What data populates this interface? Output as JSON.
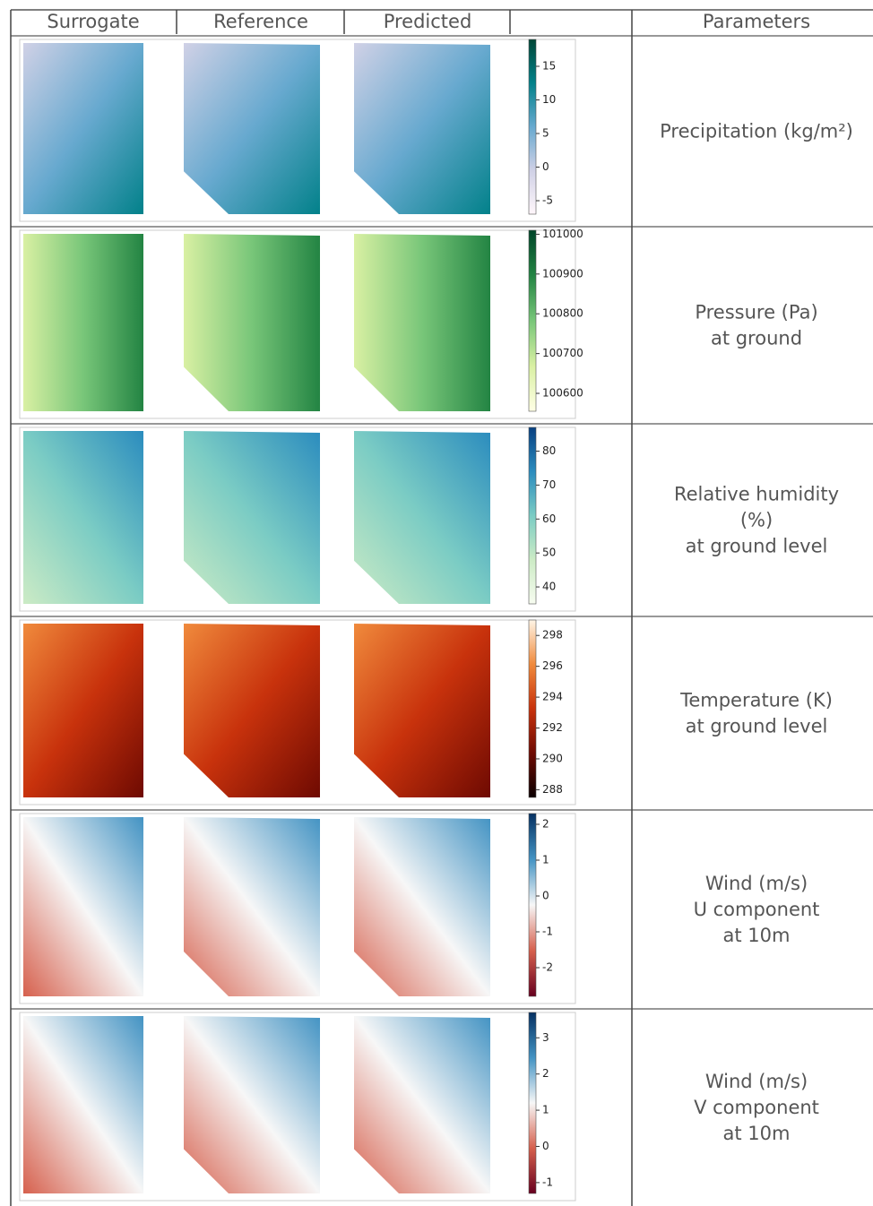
{
  "table": {
    "header": [
      "Surrogate",
      "Reference",
      "Predicted",
      "Parameters"
    ],
    "rows": [
      {
        "parameter": [
          "Precipitation (kg/m²)"
        ],
        "colorbar": {
          "lim": [
            -7,
            19
          ],
          "ticks": [
            -5,
            0,
            5,
            10,
            15
          ],
          "cmap": [
            "#fff7fb",
            "#d0d1e6",
            "#67a9cf",
            "#02818a",
            "#014636"
          ]
        }
      },
      {
        "parameter": [
          "Pressure (Pa)",
          "at ground"
        ],
        "colorbar": {
          "lim": [
            100555,
            101010
          ],
          "ticks": [
            100600,
            100700,
            100800,
            100900,
            101000
          ],
          "cmap": [
            "#ffffe5",
            "#d9f0a3",
            "#78c679",
            "#238443",
            "#004529"
          ]
        }
      },
      {
        "parameter": [
          "Relative humidity",
          "(%)",
          "at ground level"
        ],
        "colorbar": {
          "lim": [
            35,
            87
          ],
          "ticks": [
            40,
            50,
            60,
            70,
            80
          ],
          "cmap": [
            "#f7fcf0",
            "#ccebc5",
            "#7bccc4",
            "#2b8cbe",
            "#084081"
          ]
        }
      },
      {
        "parameter": [
          "Temperature (K)",
          "at ground level"
        ],
        "colorbar": {
          "lim": [
            287.5,
            299
          ],
          "ticks": [
            288,
            290,
            292,
            294,
            296,
            298
          ],
          "cmap": [
            "#0a0000",
            "#6e0a02",
            "#c8320c",
            "#f08a3c",
            "#fff5e6"
          ]
        }
      },
      {
        "parameter": [
          "Wind (m/s)",
          "U component",
          "at 10m"
        ],
        "colorbar": {
          "lim": [
            -2.8,
            2.3
          ],
          "ticks": [
            -2,
            -1,
            0,
            1,
            2
          ],
          "cmap": [
            "#67001f",
            "#d6604d",
            "#f7f7f7",
            "#4393c3",
            "#053061"
          ]
        }
      },
      {
        "parameter": [
          "Wind (m/s)",
          "V component",
          "at 10m"
        ],
        "colorbar": {
          "lim": [
            -1.3,
            3.7
          ],
          "ticks": [
            -1,
            0,
            1,
            2,
            3
          ],
          "cmap": [
            "#67001f",
            "#d6604d",
            "#f7f7f7",
            "#4393c3",
            "#053061"
          ]
        }
      }
    ]
  }
}
